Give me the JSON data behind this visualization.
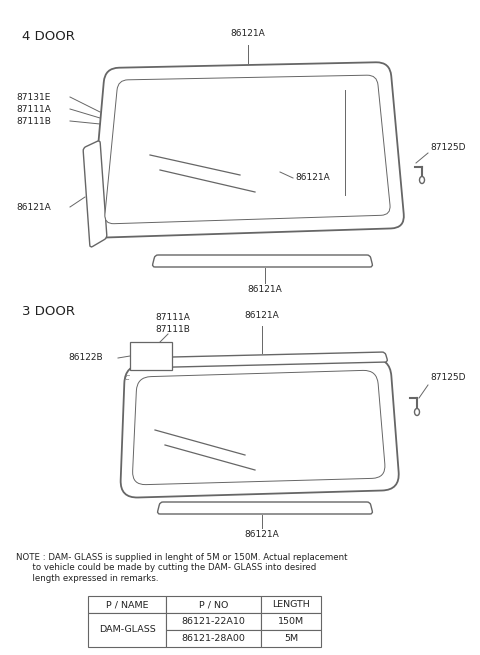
{
  "bg_color": "#ffffff",
  "section1_label": "4 DOOR",
  "section2_label": "3 DOOR",
  "note_text": "NOTE : DAM- GLASS is supplied in lenght of 5M or 150M. Actual replacement\n      to vehicle could be made by cutting the DAM- GLASS into desired\n      length expressed in remarks.",
  "table_headers": [
    "P / NAME",
    "P / NO",
    "LENGTH"
  ],
  "table_rows": [
    [
      "DAM-GLASS",
      "86121-22A10",
      "150M"
    ],
    [
      "",
      "86121-28A00",
      "5M"
    ]
  ],
  "line_color": "#666666",
  "text_color": "#222222",
  "label_fontsize": 6.5,
  "section_fontsize": 9.5,
  "note_fontsize": 6.2,
  "table_fontsize": 6.8
}
